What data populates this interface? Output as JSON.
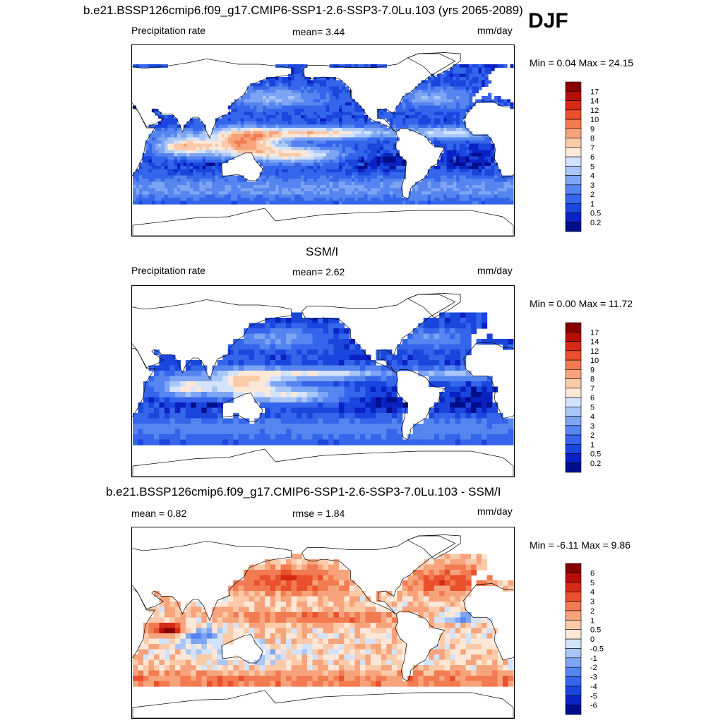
{
  "figure": {
    "season": "DJF",
    "panels": [
      {
        "title": "b.e21.BSSP126cmip6.f09_g17.CMIP6-SSP1-2.6-SSP3-7.0Lu.103 (yrs 2065-2089)",
        "left_label": "Precipitation rate",
        "center_label": "mean=   3.44",
        "units": "mm/day",
        "minmax": "Min =   0.04 Max =  24.15"
      },
      {
        "title": "SSM/I",
        "left_label": "Precipitation rate",
        "center_label": "mean=   2.62",
        "units": "mm/day",
        "minmax": "Min =   0.00 Max =  11.72"
      },
      {
        "title": "b.e21.BSSP126cmip6.f09_g17.CMIP6-SSP1-2.6-SSP3-7.0Lu.103 - SSM/I",
        "left_label": "mean =   0.82",
        "center_label": "rmse =   1.84",
        "units": "mm/day",
        "minmax": "Min =  -6.11 Max =   9.86"
      }
    ]
  },
  "chart_data": [
    {
      "type": "heatmap",
      "title": "b.e21.BSSP126cmip6.f09_g17.CMIP6-SSP1-2.6-SSP3-7.0Lu.103 (yrs 2065-2089)",
      "variable": "Precipitation rate",
      "units": "mm/day",
      "mean": 3.44,
      "min": 0.04,
      "max": 24.15,
      "colorbar_levels": [
        "0.2",
        "0.5",
        "1",
        "2",
        "3",
        "4",
        "5",
        "6",
        "7",
        "8",
        "9",
        "10",
        "12",
        "14",
        "17"
      ],
      "colorbar_colors": [
        "#000e8a",
        "#0a22c3",
        "#1a46de",
        "#3465ea",
        "#5685f0",
        "#7ea5f4",
        "#a9c6f8",
        "#d3e3fb",
        "#fde8d8",
        "#fbcaa9",
        "#f7a47c",
        "#f27b52",
        "#e9502c",
        "#d62a14",
        "#b40f07",
        "#870000"
      ]
    },
    {
      "type": "heatmap",
      "title": "SSM/I",
      "variable": "Precipitation rate",
      "units": "mm/day",
      "mean": 2.62,
      "min": 0.0,
      "max": 11.72,
      "colorbar_levels": [
        "0.2",
        "0.5",
        "1",
        "2",
        "3",
        "4",
        "5",
        "6",
        "7",
        "8",
        "9",
        "10",
        "12",
        "14",
        "17"
      ],
      "colorbar_colors": [
        "#000e8a",
        "#0a22c3",
        "#1a46de",
        "#3465ea",
        "#5685f0",
        "#7ea5f4",
        "#a9c6f8",
        "#d3e3fb",
        "#fde8d8",
        "#fbcaa9",
        "#f7a47c",
        "#f27b52",
        "#e9502c",
        "#d62a14",
        "#b40f07",
        "#870000"
      ]
    },
    {
      "type": "heatmap",
      "title": "b.e21.BSSP126cmip6.f09_g17.CMIP6-SSP1-2.6-SSP3-7.0Lu.103 - SSM/I",
      "units": "mm/day",
      "mean": 0.82,
      "rmse": 1.84,
      "min": -6.11,
      "max": 9.86,
      "colorbar_levels": [
        "-6",
        "-5",
        "-4",
        "-3",
        "-2",
        "-1",
        "-0.5",
        "0",
        "0.5",
        "1",
        "2",
        "3",
        "4",
        "5",
        "6"
      ],
      "colorbar_colors": [
        "#000e8a",
        "#0a22c3",
        "#1a46de",
        "#3465ea",
        "#5685f0",
        "#7ea5f4",
        "#a9c6f8",
        "#d3e3fb",
        "#fde8d8",
        "#fbcaa9",
        "#f7a47c",
        "#f27b52",
        "#e9502c",
        "#d62a14",
        "#b40f07",
        "#870000"
      ]
    }
  ]
}
